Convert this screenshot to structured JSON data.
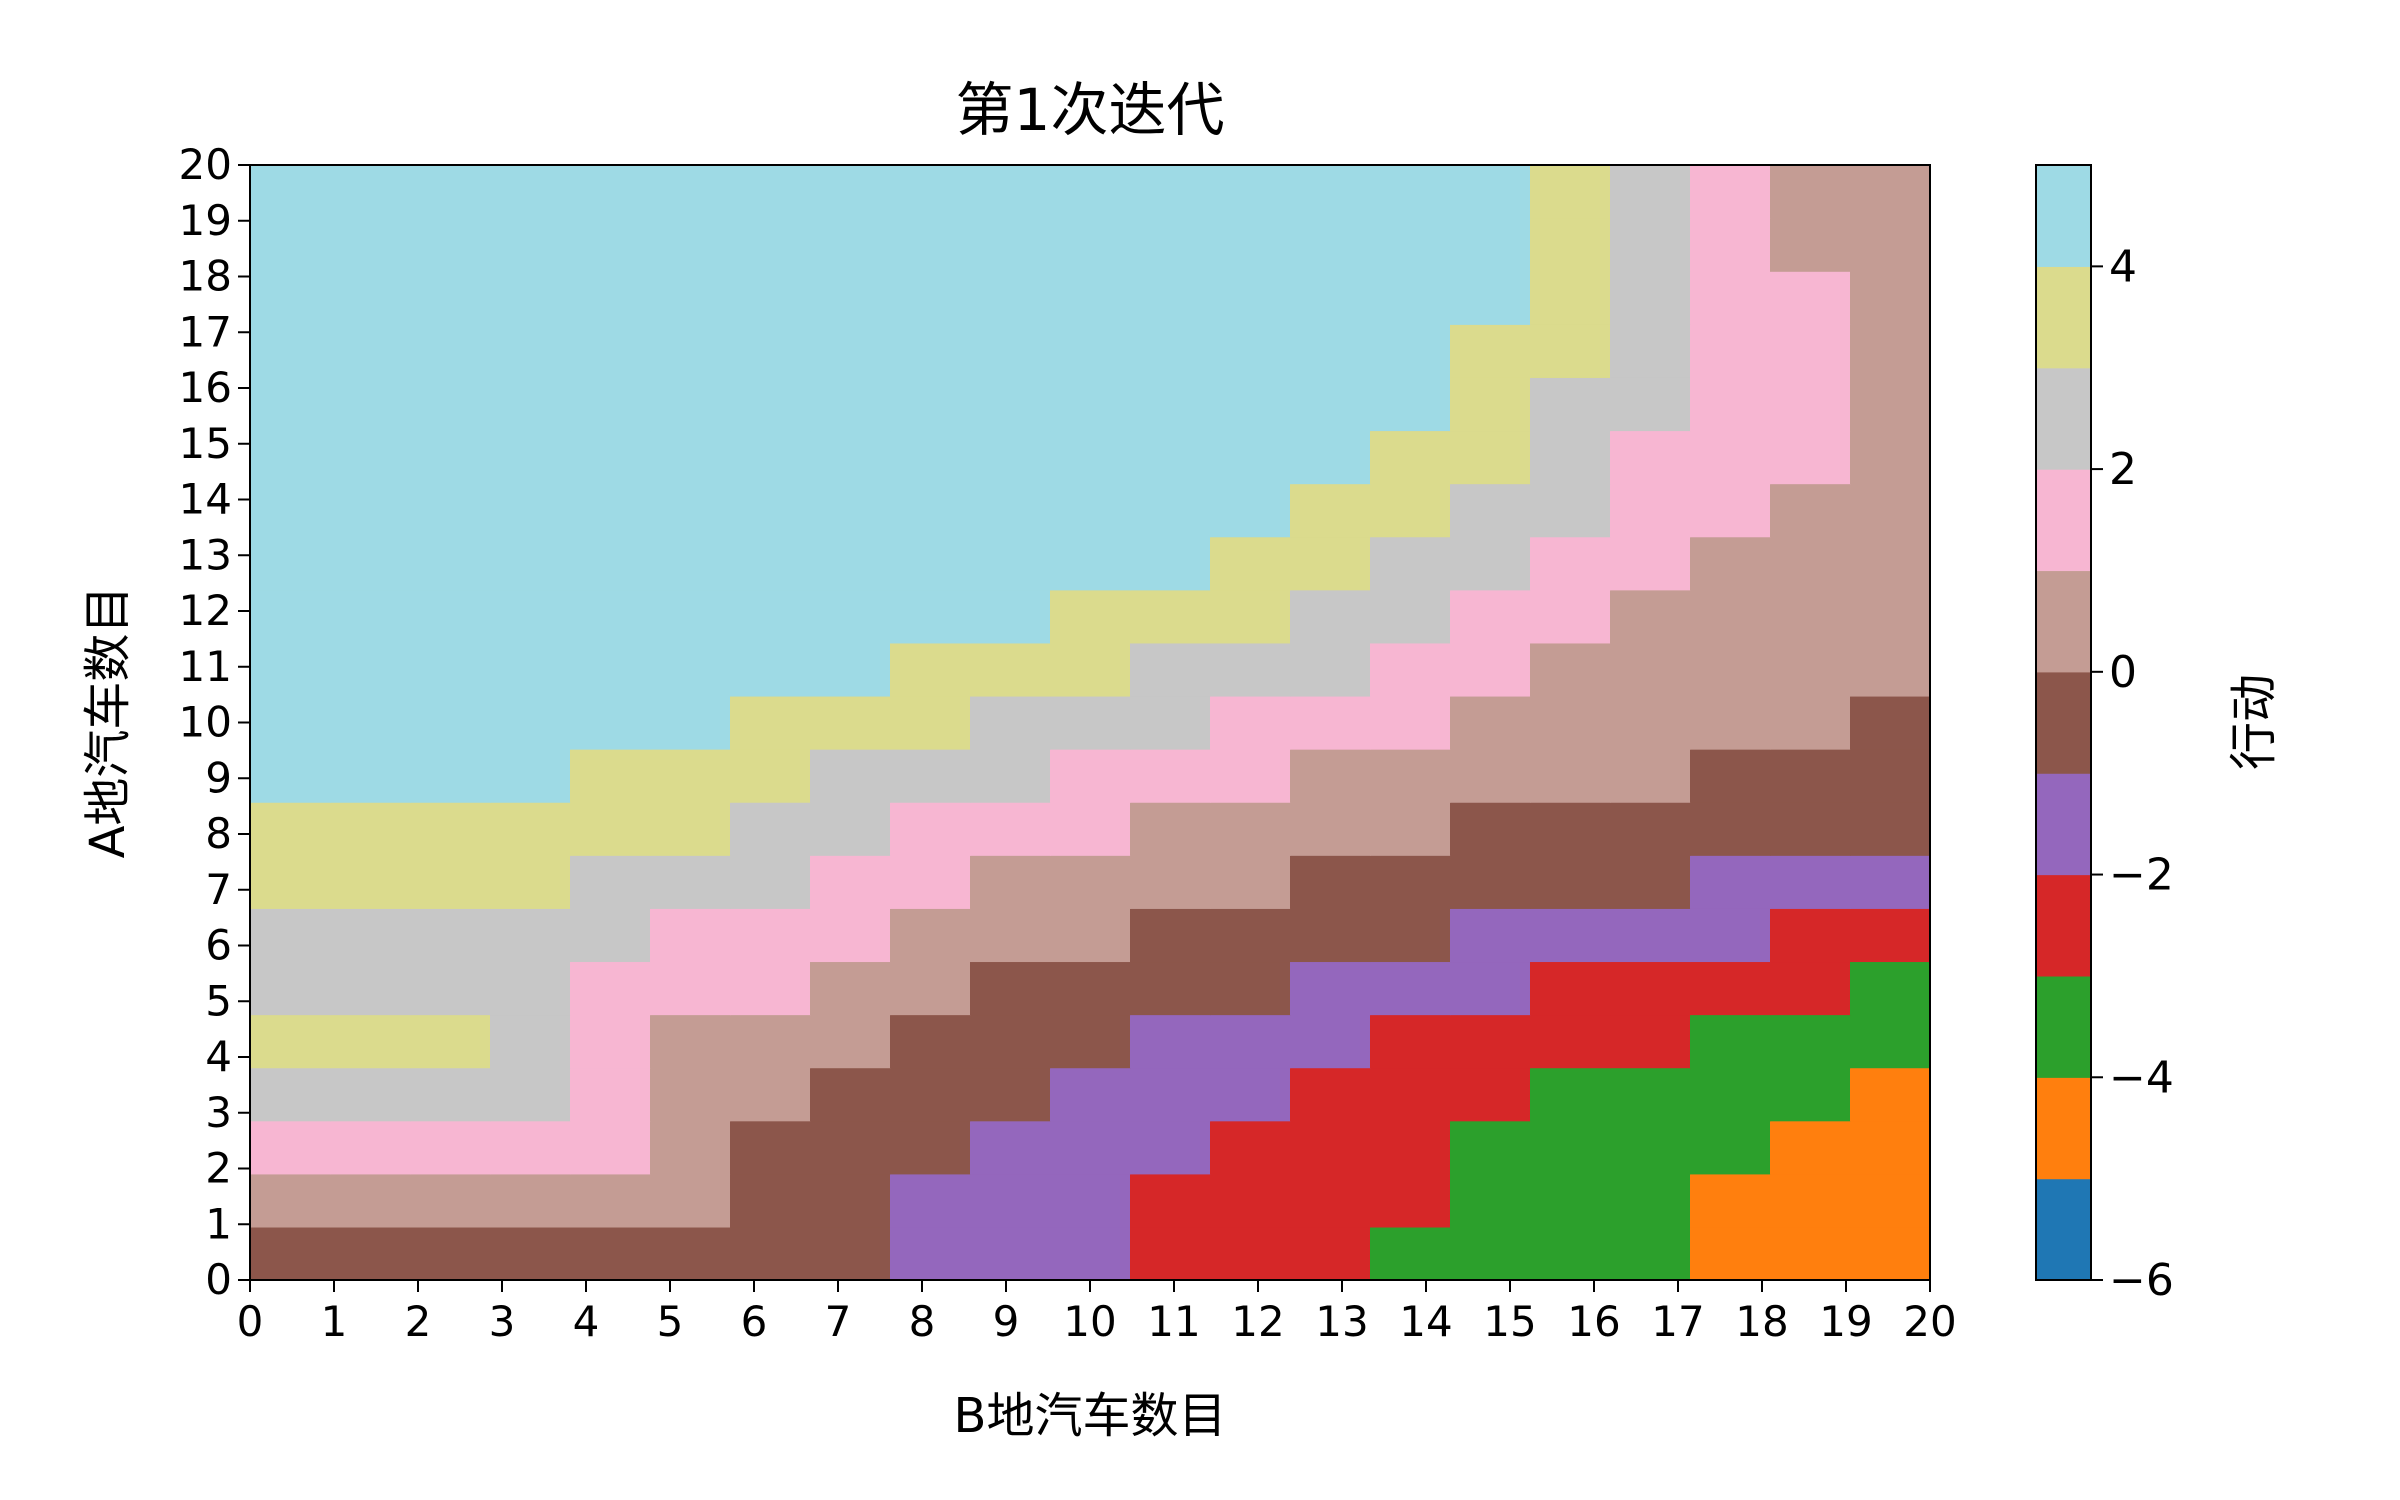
{
  "chart_data": {
    "type": "heatmap",
    "title": "第1次迭代",
    "xlabel": "B地汽车数目",
    "ylabel": "A地汽车数目",
    "xlim": [
      0,
      20
    ],
    "ylim": [
      0,
      20
    ],
    "x_ticks": [
      "0",
      "1",
      "2",
      "3",
      "4",
      "5",
      "6",
      "7",
      "8",
      "9",
      "10",
      "11",
      "12",
      "13",
      "14",
      "15",
      "16",
      "17",
      "18",
      "19",
      "20"
    ],
    "y_ticks": [
      "0",
      "1",
      "2",
      "3",
      "4",
      "5",
      "6",
      "7",
      "8",
      "9",
      "10",
      "11",
      "12",
      "13",
      "14",
      "15",
      "16",
      "17",
      "18",
      "19",
      "20"
    ],
    "colorbar": {
      "label": "行动",
      "range": [
        -6,
        5
      ],
      "ticks": [
        "4",
        "2",
        "0",
        "−2",
        "−4",
        "−6"
      ],
      "tick_values": [
        4,
        2,
        0,
        -2,
        -4,
        -6
      ],
      "levels": [
        {
          "value": -5,
          "color": "#1f77b4"
        },
        {
          "value": -4,
          "color": "#ff7f0e"
        },
        {
          "value": -3,
          "color": "#2ca02c"
        },
        {
          "value": -2,
          "color": "#d62728"
        },
        {
          "value": -1,
          "color": "#9467bd"
        },
        {
          "value": 0,
          "color": "#8c564b"
        },
        {
          "value": 1,
          "color": "#c49c94"
        },
        {
          "value": 2,
          "color": "#f7b6d2"
        },
        {
          "value": 3,
          "color": "#c7c7c7"
        },
        {
          "value": 4,
          "color": "#dbdb8d"
        },
        {
          "value": 5,
          "color": "#9edae5"
        }
      ]
    },
    "rows_note": "values[i][j] = action for A=i cars (row), B=j cars (column)",
    "values": [
      [
        0,
        0,
        0,
        0,
        0,
        0,
        0,
        0,
        -1,
        -1,
        -1,
        -2,
        -2,
        -2,
        -3,
        -3,
        -3,
        -3,
        -4,
        -4,
        -4
      ],
      [
        1,
        1,
        1,
        1,
        1,
        1,
        0,
        0,
        -1,
        -1,
        -1,
        -2,
        -2,
        -2,
        -2,
        -3,
        -3,
        -3,
        -4,
        -4,
        -4
      ],
      [
        2,
        2,
        2,
        2,
        2,
        1,
        0,
        0,
        0,
        -1,
        -1,
        -1,
        -2,
        -2,
        -2,
        -3,
        -3,
        -3,
        -3,
        -4,
        -4
      ],
      [
        3,
        3,
        3,
        3,
        2,
        1,
        1,
        0,
        0,
        0,
        -1,
        -1,
        -1,
        -2,
        -2,
        -2,
        -3,
        -3,
        -3,
        -3,
        -4
      ],
      [
        4,
        4,
        4,
        3,
        2,
        1,
        1,
        1,
        0,
        0,
        0,
        -1,
        -1,
        -1,
        -2,
        -2,
        -2,
        -2,
        -3,
        -3,
        -3
      ],
      [
        3,
        3,
        3,
        3,
        2,
        2,
        2,
        1,
        1,
        0,
        0,
        0,
        0,
        -1,
        -1,
        -1,
        -2,
        -2,
        -2,
        -2,
        -3
      ],
      [
        3,
        3,
        3,
        3,
        3,
        2,
        2,
        2,
        1,
        1,
        1,
        0,
        0,
        0,
        0,
        -1,
        -1,
        -1,
        -1,
        -2,
        -2
      ],
      [
        4,
        4,
        4,
        4,
        3,
        3,
        3,
        2,
        2,
        1,
        1,
        1,
        1,
        0,
        0,
        0,
        0,
        0,
        -1,
        -1,
        -1
      ],
      [
        4,
        4,
        4,
        4,
        4,
        4,
        3,
        3,
        2,
        2,
        2,
        1,
        1,
        1,
        1,
        0,
        0,
        0,
        0,
        0,
        0
      ],
      [
        5,
        5,
        5,
        5,
        4,
        4,
        4,
        3,
        3,
        3,
        2,
        2,
        2,
        1,
        1,
        1,
        1,
        1,
        0,
        0,
        0
      ],
      [
        5,
        5,
        5,
        5,
        5,
        5,
        4,
        4,
        4,
        3,
        3,
        3,
        2,
        2,
        2,
        1,
        1,
        1,
        1,
        1,
        0
      ],
      [
        5,
        5,
        5,
        5,
        5,
        5,
        5,
        5,
        4,
        4,
        4,
        3,
        3,
        3,
        2,
        2,
        1,
        1,
        1,
        1,
        1
      ],
      [
        5,
        5,
        5,
        5,
        5,
        5,
        5,
        5,
        5,
        5,
        4,
        4,
        4,
        3,
        3,
        2,
        2,
        1,
        1,
        1,
        1
      ],
      [
        5,
        5,
        5,
        5,
        5,
        5,
        5,
        5,
        5,
        5,
        5,
        5,
        4,
        4,
        3,
        3,
        2,
        2,
        1,
        1,
        1
      ],
      [
        5,
        5,
        5,
        5,
        5,
        5,
        5,
        5,
        5,
        5,
        5,
        5,
        5,
        4,
        4,
        3,
        3,
        2,
        2,
        1,
        1
      ],
      [
        5,
        5,
        5,
        5,
        5,
        5,
        5,
        5,
        5,
        5,
        5,
        5,
        5,
        5,
        4,
        4,
        3,
        2,
        2,
        2,
        1
      ],
      [
        5,
        5,
        5,
        5,
        5,
        5,
        5,
        5,
        5,
        5,
        5,
        5,
        5,
        5,
        5,
        4,
        3,
        3,
        2,
        2,
        1
      ],
      [
        5,
        5,
        5,
        5,
        5,
        5,
        5,
        5,
        5,
        5,
        5,
        5,
        5,
        5,
        5,
        4,
        4,
        3,
        2,
        2,
        1
      ],
      [
        5,
        5,
        5,
        5,
        5,
        5,
        5,
        5,
        5,
        5,
        5,
        5,
        5,
        5,
        5,
        5,
        4,
        3,
        2,
        2,
        1
      ],
      [
        5,
        5,
        5,
        5,
        5,
        5,
        5,
        5,
        5,
        5,
        5,
        5,
        5,
        5,
        5,
        5,
        4,
        3,
        2,
        1,
        1
      ],
      [
        5,
        5,
        5,
        5,
        5,
        5,
        5,
        5,
        5,
        5,
        5,
        5,
        5,
        5,
        5,
        5,
        4,
        3,
        2,
        1,
        1
      ]
    ]
  }
}
